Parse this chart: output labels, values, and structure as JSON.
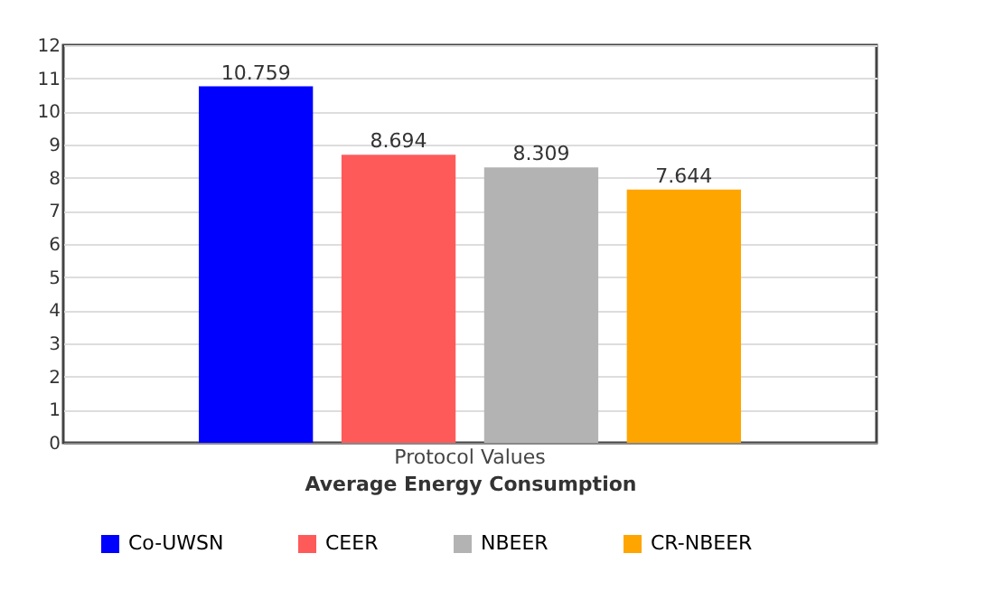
{
  "chart_data": {
    "type": "bar",
    "categories": [
      "Protocol Values"
    ],
    "xlabel": "Average Energy Consumption",
    "series": [
      {
        "name": "Co-UWSN",
        "color": "#0000ff",
        "values": [
          10.759
        ]
      },
      {
        "name": "CEER",
        "color": "#ff5a5a",
        "values": [
          8.694
        ]
      },
      {
        "name": "NBEER",
        "color": "#b3b3b3",
        "values": [
          8.309
        ]
      },
      {
        "name": "CR-NBEER",
        "color": "#ffa500",
        "values": [
          7.644
        ]
      }
    ],
    "ylim": [
      0,
      12
    ],
    "yticks": [
      0,
      1,
      2,
      3,
      4,
      5,
      6,
      7,
      8,
      9,
      10,
      11,
      12
    ],
    "grid": "y",
    "legend": "bottom left",
    "data_labels": true
  }
}
